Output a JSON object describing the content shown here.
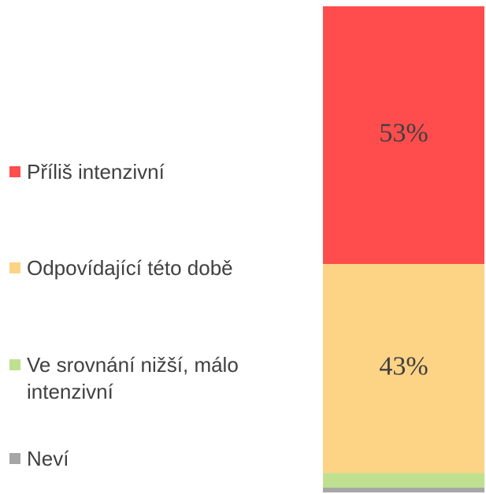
{
  "chart_data": {
    "type": "stacked-bar",
    "categories": [
      null
    ],
    "ylim": [
      0,
      100
    ],
    "series": [
      {
        "name": "Příliš intenzivní",
        "color": "#ff4c4c",
        "values": [
          53
        ],
        "value_labels": [
          "53%"
        ]
      },
      {
        "name": "Odpovídající této době",
        "color": "#fdd385",
        "values": [
          43
        ],
        "value_labels": [
          "43%"
        ]
      },
      {
        "name": "Ve srovnání nižší, málo intenzivní",
        "color": "#bfe08f",
        "values": [
          3
        ]
      },
      {
        "name": "Neví",
        "color": "#a6a6a6",
        "values": [
          1
        ]
      }
    ]
  }
}
